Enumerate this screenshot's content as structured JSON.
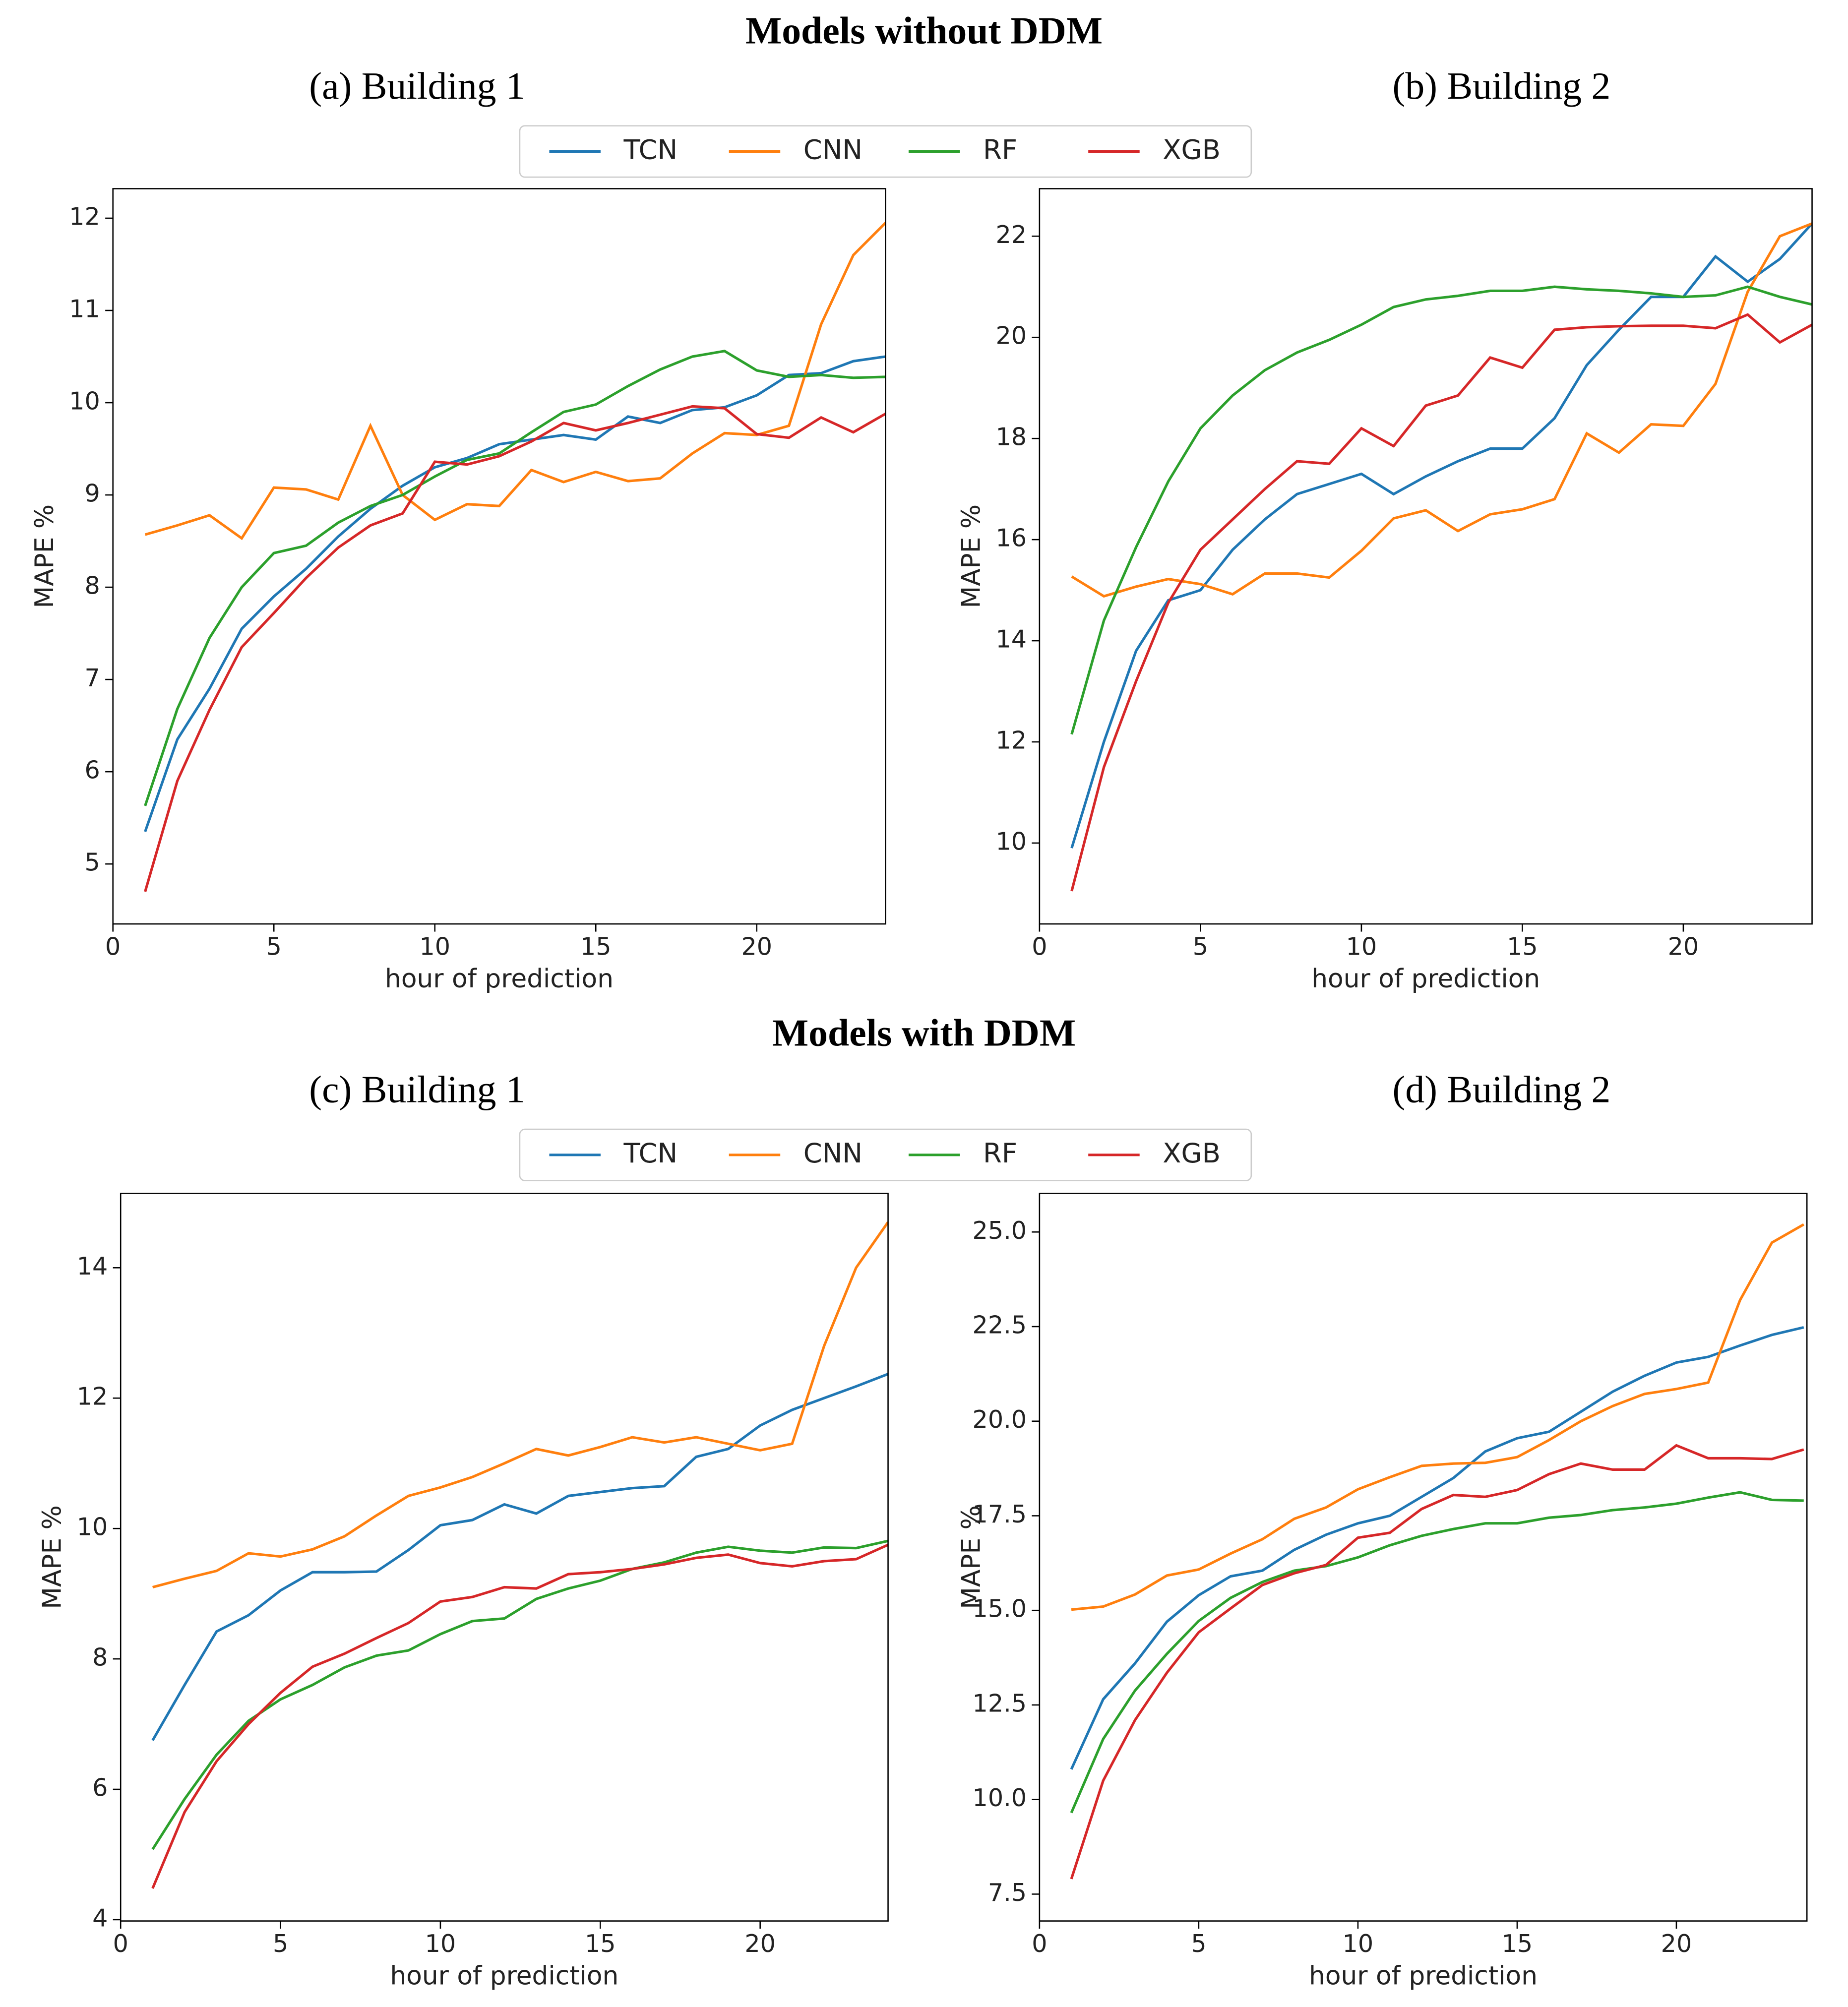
{
  "headings": [
    "Models without DDM",
    "Models with DDM"
  ],
  "chart_data": [
    {
      "type": "line",
      "title": "(a) Building 1",
      "x_label": "hour of prediction",
      "y_label": "MAPE %",
      "x": [
        1,
        2,
        3,
        4,
        5,
        6,
        7,
        8,
        9,
        10,
        11,
        12,
        13,
        14,
        15,
        16,
        17,
        18,
        19,
        20,
        21,
        22,
        23,
        24
      ],
      "xlim": [
        0,
        24
      ],
      "xticks": [
        0,
        5,
        10,
        15,
        20
      ],
      "ylim": [
        4.35,
        12.32
      ],
      "yticks": [
        5,
        6,
        7,
        8,
        9,
        10,
        11,
        12
      ],
      "series": [
        {
          "name": "TCN",
          "color": "#1f77b4",
          "values": [
            5.35,
            6.35,
            6.9,
            7.55,
            7.9,
            8.2,
            8.55,
            8.85,
            9.1,
            9.3,
            9.4,
            9.55,
            9.6,
            9.65,
            9.6,
            9.85,
            9.78,
            9.92,
            9.95,
            10.08,
            10.3,
            10.32,
            10.45,
            10.5
          ]
        },
        {
          "name": "CNN",
          "color": "#ff7f0e",
          "values": [
            8.57,
            8.67,
            8.78,
            8.53,
            9.08,
            9.06,
            8.95,
            9.75,
            9.0,
            8.73,
            8.9,
            8.88,
            9.27,
            9.14,
            9.25,
            9.15,
            9.18,
            9.45,
            9.67,
            9.65,
            9.75,
            10.85,
            11.6,
            11.95
          ]
        },
        {
          "name": "RF",
          "color": "#2ca02c",
          "values": [
            5.63,
            6.68,
            7.45,
            8.0,
            8.37,
            8.45,
            8.7,
            8.88,
            9.0,
            9.2,
            9.38,
            9.45,
            9.68,
            9.9,
            9.98,
            10.18,
            10.36,
            10.5,
            10.56,
            10.35,
            10.28,
            10.3,
            10.27,
            10.28
          ]
        },
        {
          "name": "XGB",
          "color": "#d62728",
          "values": [
            4.7,
            5.9,
            6.67,
            7.35,
            7.72,
            8.1,
            8.43,
            8.67,
            8.8,
            9.36,
            9.33,
            9.42,
            9.58,
            9.78,
            9.7,
            9.78,
            9.87,
            9.96,
            9.94,
            9.66,
            9.62,
            9.84,
            9.68,
            9.88
          ]
        }
      ]
    },
    {
      "type": "line",
      "title": "(b) Building 2",
      "x_label": "hour of prediction",
      "y_label": "MAPE %",
      "x": [
        1,
        2,
        3,
        4,
        5,
        6,
        7,
        8,
        9,
        10,
        11,
        12,
        13,
        14,
        15,
        16,
        17,
        18,
        19,
        20,
        21,
        22,
        23,
        24
      ],
      "xlim": [
        0,
        24
      ],
      "xticks": [
        0,
        5,
        10,
        15,
        20
      ],
      "ylim": [
        8.4,
        22.94
      ],
      "yticks": [
        10,
        12,
        14,
        16,
        18,
        20,
        22
      ],
      "series": [
        {
          "color": "#1f77b4",
          "values": [
            9.9,
            12.0,
            13.8,
            14.8,
            15.0,
            15.8,
            16.4,
            16.9,
            17.1,
            17.3,
            16.9,
            17.25,
            17.55,
            17.8,
            17.8,
            18.4,
            19.45,
            20.15,
            20.8,
            20.8,
            21.6,
            21.1,
            21.55,
            22.25
          ]
        },
        {
          "color": "#ff7f0e",
          "values": [
            15.27,
            14.88,
            15.07,
            15.22,
            15.12,
            14.92,
            15.33,
            15.33,
            15.25,
            15.78,
            16.42,
            16.58,
            16.17,
            16.5,
            16.6,
            16.8,
            18.1,
            17.72,
            18.28,
            18.25,
            19.08,
            20.9,
            22.0,
            22.25
          ]
        },
        {
          "color": "#2ca02c",
          "values": [
            12.15,
            14.4,
            15.85,
            17.15,
            18.2,
            18.85,
            19.35,
            19.7,
            19.95,
            20.25,
            20.6,
            20.75,
            20.82,
            20.92,
            20.92,
            21.0,
            20.95,
            20.92,
            20.87,
            20.8,
            20.83,
            21.0,
            20.8,
            20.65
          ]
        },
        {
          "color": "#d62728",
          "values": [
            9.05,
            11.5,
            13.2,
            14.75,
            15.8,
            16.4,
            17.0,
            17.55,
            17.5,
            18.2,
            17.85,
            18.65,
            18.85,
            19.6,
            19.4,
            20.15,
            20.2,
            20.22,
            20.23,
            20.23,
            20.18,
            20.45,
            19.9,
            20.25
          ]
        }
      ]
    },
    {
      "type": "line",
      "title": "(c) Building 1",
      "x_label": "hour of prediction",
      "y_label": "MAPE %",
      "x": [
        1,
        2,
        3,
        4,
        5,
        6,
        7,
        8,
        9,
        10,
        11,
        12,
        13,
        14,
        15,
        16,
        17,
        18,
        19,
        20,
        21,
        22,
        23,
        24
      ],
      "xlim": [
        0,
        24
      ],
      "xticks": [
        0,
        5,
        10,
        15,
        20
      ],
      "ylim": [
        3.98,
        15.14
      ],
      "yticks": [
        4,
        6,
        8,
        10,
        12,
        14
      ],
      "series": [
        {
          "name": "TCN",
          "color": "#1f77b4",
          "values": [
            6.75,
            7.6,
            8.42,
            8.67,
            9.05,
            9.33,
            9.33,
            9.34,
            9.67,
            10.05,
            10.13,
            10.37,
            10.23,
            10.5,
            10.56,
            10.62,
            10.65,
            11.1,
            11.22,
            11.58,
            11.82,
            12.0,
            12.18,
            12.37
          ]
        },
        {
          "name": "CNN",
          "color": "#ff7f0e",
          "values": [
            9.1,
            9.23,
            9.35,
            9.62,
            9.57,
            9.68,
            9.88,
            10.2,
            10.5,
            10.63,
            10.79,
            11.0,
            11.22,
            11.12,
            11.25,
            11.4,
            11.32,
            11.4,
            11.3,
            11.2,
            11.3,
            12.8,
            14.0,
            14.7
          ]
        },
        {
          "name": "RF",
          "color": "#2ca02c",
          "values": [
            5.08,
            5.85,
            6.53,
            7.05,
            7.38,
            7.6,
            7.87,
            8.05,
            8.13,
            8.38,
            8.58,
            8.62,
            8.92,
            9.08,
            9.2,
            9.38,
            9.48,
            9.63,
            9.72,
            9.66,
            9.63,
            9.71,
            9.7,
            9.81
          ]
        },
        {
          "name": "XGB",
          "color": "#d62728",
          "values": [
            4.48,
            5.65,
            6.43,
            7.0,
            7.48,
            7.88,
            8.08,
            8.32,
            8.55,
            8.88,
            8.95,
            9.1,
            9.08,
            9.3,
            9.33,
            9.38,
            9.45,
            9.55,
            9.6,
            9.47,
            9.42,
            9.5,
            9.53,
            9.75
          ]
        }
      ]
    },
    {
      "type": "line",
      "title": "(d) Building 2",
      "x_label": "hour of prediction",
      "y_label": "MAPE %",
      "x": [
        1,
        2,
        3,
        4,
        5,
        6,
        7,
        8,
        9,
        10,
        11,
        12,
        13,
        14,
        15,
        16,
        17,
        18,
        19,
        20,
        21,
        22,
        23,
        24
      ],
      "xlim": [
        0,
        24.1
      ],
      "xticks": [
        0,
        5,
        10,
        15,
        20
      ],
      "ylim": [
        6.79,
        26.02
      ],
      "yticks": [
        7.5,
        {
          "value": 10,
          "label": "10.0"
        },
        12.5,
        {
          "value": 15,
          "label": "15.0"
        },
        17.5,
        {
          "value": 20,
          "label": "20.0"
        },
        22.5,
        {
          "value": 25,
          "label": "25.0"
        }
      ],
      "series": [
        {
          "color": "#1f77b4",
          "values": [
            10.8,
            12.65,
            13.6,
            14.7,
            15.4,
            15.9,
            16.05,
            16.6,
            17.0,
            17.3,
            17.5,
            18.0,
            18.5,
            19.2,
            19.55,
            19.72,
            20.25,
            20.78,
            21.2,
            21.55,
            21.7,
            22.0,
            22.28,
            22.48
          ]
        },
        {
          "color": "#ff7f0e",
          "values": [
            15.02,
            15.1,
            15.42,
            15.92,
            16.08,
            16.5,
            16.88,
            17.42,
            17.72,
            18.2,
            18.52,
            18.82,
            18.88,
            18.9,
            19.05,
            19.5,
            20.0,
            20.4,
            20.72,
            20.85,
            21.02,
            23.2,
            24.72,
            25.2
          ]
        },
        {
          "color": "#2ca02c",
          "values": [
            9.65,
            11.6,
            12.88,
            13.85,
            14.72,
            15.33,
            15.75,
            16.05,
            16.17,
            16.4,
            16.72,
            16.97,
            17.15,
            17.3,
            17.3,
            17.45,
            17.52,
            17.65,
            17.72,
            17.82,
            17.98,
            18.12,
            17.92,
            17.9
          ]
        },
        {
          "color": "#d62728",
          "values": [
            7.9,
            10.5,
            12.1,
            13.35,
            14.42,
            15.05,
            15.67,
            15.98,
            16.2,
            16.92,
            17.05,
            17.68,
            18.05,
            18.0,
            18.18,
            18.6,
            18.88,
            18.72,
            18.72,
            19.36,
            19.02,
            19.02,
            19.0,
            19.25
          ]
        }
      ]
    }
  ]
}
